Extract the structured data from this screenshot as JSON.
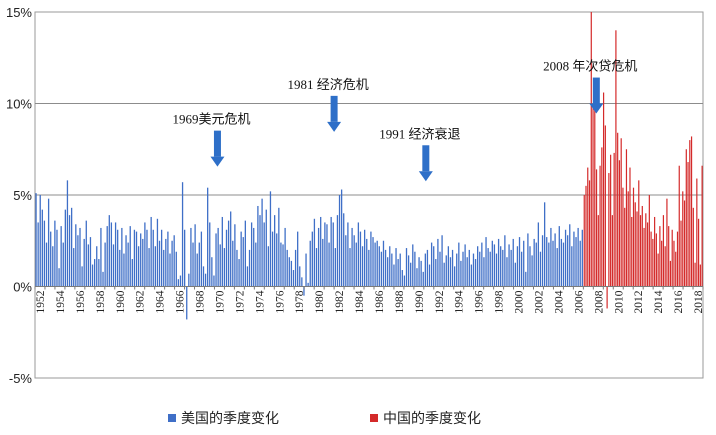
{
  "chart_data": {
    "type": "bar",
    "title": "",
    "xlabel": "",
    "ylabel": "",
    "ylim": [
      -5,
      15
    ],
    "yticks": [
      "15%",
      "10%",
      "5%",
      "0%",
      "-5%"
    ],
    "x_tick_labels": [
      "1952",
      "1954",
      "1956",
      "1958",
      "1960",
      "1962",
      "1964",
      "1966",
      "1968",
      "1970",
      "1972",
      "1974",
      "1976",
      "1978",
      "1980",
      "1982",
      "1984",
      "1986",
      "1988",
      "1990",
      "1992",
      "1994",
      "1996",
      "1998",
      "2000",
      "2002",
      "2004",
      "2006",
      "2008",
      "2010",
      "2012",
      "2014",
      "2016",
      "2018"
    ],
    "grid": "horizontal",
    "x_range": [
      1952,
      2019
    ],
    "colors": {
      "us": "#3f6fc7",
      "cn": "#d42a2a",
      "arrow": "#2e6fc8"
    },
    "series": [
      {
        "name": "美国的季度变化",
        "x_start": 1952,
        "x_end": 2007,
        "values": [
          5.1,
          3.5,
          5.0,
          4.2,
          3.6,
          2.4,
          4.8,
          3.0,
          2.2,
          3.6,
          3.1,
          1.0,
          3.3,
          2.4,
          4.2,
          5.8,
          3.9,
          4.3,
          2.1,
          3.4,
          2.8,
          3.2,
          1.1,
          2.6,
          3.6,
          2.3,
          2.7,
          1.2,
          1.5,
          2.2,
          1.5,
          3.2,
          0.8,
          2.4,
          3.3,
          3.9,
          3.5,
          2.3,
          3.5,
          3.1,
          2.0,
          3.2,
          1.8,
          2.8,
          2.4,
          3.3,
          1.5,
          3.1,
          3.0,
          2.2,
          2.9,
          2.6,
          3.5,
          3.1,
          2.1,
          3.8,
          3.1,
          2.2,
          3.7,
          2.5,
          3.1,
          2.0,
          2.6,
          3.0,
          1.8,
          2.5,
          2.8,
          1.9,
          0.4,
          0.6,
          5.7,
          3.1,
          -1.8,
          0.7,
          3.2,
          2.4,
          3.4,
          1.8,
          2.4,
          3.0,
          1.1,
          0.7,
          5.4,
          3.5,
          1.6,
          0.6,
          2.9,
          3.2,
          2.3,
          3.8,
          2.1,
          3.1,
          3.6,
          4.1,
          2.5,
          3.4,
          2.0,
          1.5,
          3.0,
          2.7,
          3.6,
          1.1,
          2.0,
          3.5,
          3.2,
          2.4,
          4.4,
          3.9,
          4.8,
          3.5,
          4.2,
          2.2,
          5.2,
          3.0,
          3.9,
          2.9,
          4.3,
          2.4,
          2.3,
          3.2,
          2.0,
          1.6,
          1.4,
          0.9,
          2.0,
          3.0,
          1.1,
          0.5,
          -0.5,
          1.8,
          0.2,
          2.5,
          3.0,
          3.7,
          2.1,
          3.2,
          3.8,
          2.6,
          3.5,
          3.4,
          2.4,
          3.8,
          3.5,
          2.1,
          3.9,
          5.0,
          5.3,
          4.0,
          2.8,
          3.5,
          2.1,
          3.2,
          2.8,
          2.4,
          3.5,
          3.0,
          2.2,
          3.1,
          2.6,
          2.0,
          3.0,
          2.7,
          2.4,
          2.5,
          2.2,
          1.9,
          2.5,
          2.0,
          1.6,
          2.2,
          1.8,
          1.2,
          2.1,
          1.5,
          1.8,
          0.9,
          0.6,
          2.1,
          1.7,
          1.3,
          2.3,
          1.9,
          1.0,
          1.6,
          1.4,
          0.8,
          1.8,
          2.0,
          1.2,
          2.4,
          2.2,
          1.5,
          2.6,
          1.9,
          2.8,
          1.3,
          1.7,
          2.2,
          1.6,
          2.0,
          1.1,
          1.8,
          2.4,
          1.4,
          1.9,
          2.3,
          1.6,
          2.0,
          1.2,
          1.8,
          1.5,
          2.2,
          1.9,
          2.4,
          1.6,
          2.7,
          2.1,
          1.9,
          2.5,
          2.3,
          1.8,
          2.6,
          2.2,
          2.0,
          2.8,
          1.6,
          2.3,
          2.0,
          2.6,
          1.3,
          2.2,
          2.7,
          1.9,
          2.5,
          0.8,
          2.9,
          2.2,
          1.7,
          2.6,
          2.4,
          3.5,
          1.9,
          2.8,
          4.6,
          2.7,
          2.4,
          3.2,
          2.5,
          2.9,
          2.1,
          3.3,
          2.6,
          2.4,
          3.1,
          2.8,
          3.4,
          2.2,
          3.0,
          2.7,
          3.2,
          2.5,
          3.1
        ]
      },
      {
        "name": "中国的季度变化",
        "x_start": 2007,
        "x_end": 2019,
        "values": [
          5.0,
          5.5,
          6.5,
          5.8,
          15.0,
          10.0,
          9.8,
          6.4,
          3.9,
          6.6,
          7.6,
          10.6,
          8.8,
          -1.2,
          6.2,
          7.2,
          3.9,
          7.3,
          14.0,
          8.4,
          6.9,
          8.1,
          5.4,
          4.3,
          7.5,
          5.2,
          6.5,
          3.8,
          5.4,
          4.6,
          4.1,
          5.8,
          3.9,
          4.4,
          3.2,
          4.0,
          3.5,
          5.0,
          3.0,
          2.6,
          3.8,
          2.9,
          1.8,
          3.3,
          2.5,
          3.9,
          2.2,
          4.8,
          3.3,
          1.4,
          3.1,
          2.5,
          1.9,
          3.0,
          6.6,
          3.6,
          5.2,
          4.7,
          7.5,
          6.8,
          8.0,
          8.2,
          4.3,
          1.3,
          5.9,
          3.7,
          1.2,
          6.6
        ]
      }
    ],
    "annotations": [
      {
        "text": "1969美元危机",
        "x": 1970.3,
        "label_y": 8.9
      },
      {
        "text": "1981 经济危机",
        "x": 1982.0,
        "label_y": 10.8
      },
      {
        "text": "1991 经济衰退",
        "x": 1991.2,
        "label_y": 8.1
      },
      {
        "text": "2008 年次贷危机",
        "x": 2008.3,
        "label_y": 11.8
      }
    ]
  },
  "legend": {
    "us_label": "美国的季度变化",
    "cn_label": "中国的季度变化"
  }
}
